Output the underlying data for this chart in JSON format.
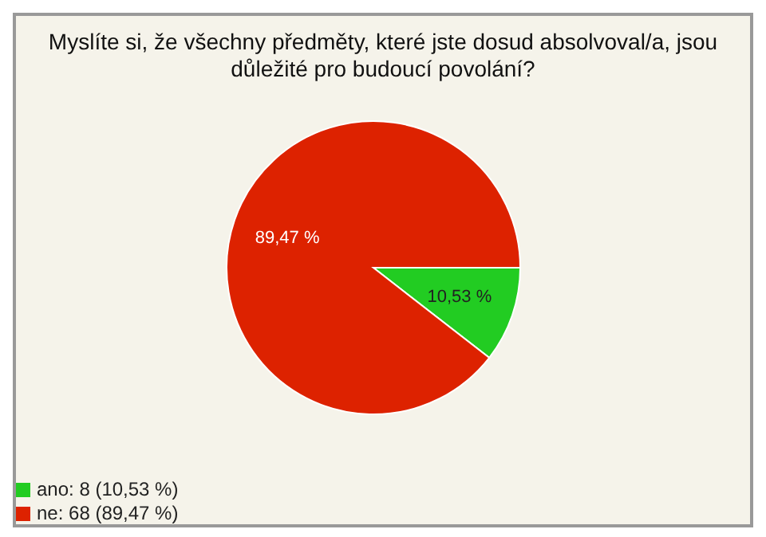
{
  "chart_data": {
    "type": "pie",
    "title": "Myslíte si, že všechny předměty, které jste dosud absolvoval/a, jsou důležité pro budoucí povolání?",
    "categories": [
      "ano: 8 (10,53 %)",
      "ne: 68 (89,47 %)"
    ],
    "values": [
      10.53,
      89.47
    ],
    "colors": [
      "#22cc22",
      "#dd2200"
    ],
    "value_labels": [
      "10,53 %",
      "89,47 %"
    ],
    "legend": "bottom left"
  }
}
